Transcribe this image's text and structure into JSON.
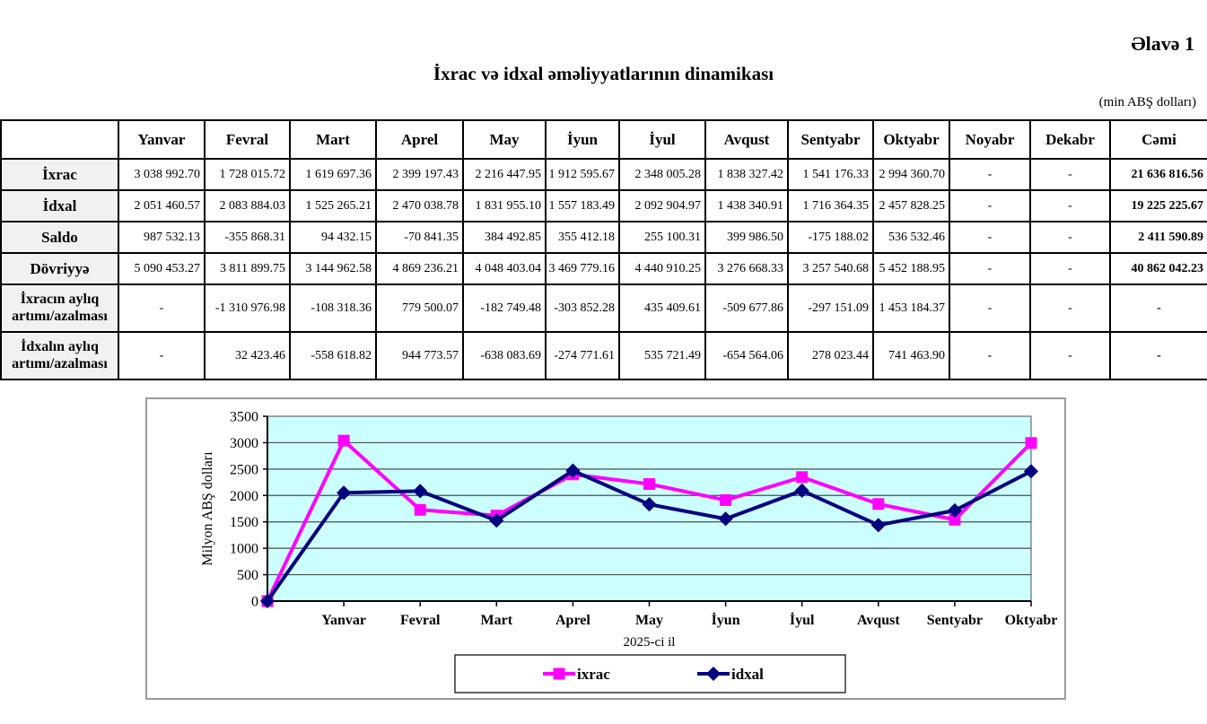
{
  "page": {
    "annex_label": "Əlavə 1",
    "title": "İxrac və idxal əməliyyatlarının dinamikası",
    "unit_note": "(min ABŞ dolları)"
  },
  "table": {
    "header": [
      "",
      "Yanvar",
      "Fevral",
      "Mart",
      "Aprel",
      "May",
      "İyun",
      "İyul",
      "Avqust",
      "Sentyabr",
      "Oktyabr",
      "Noyabr",
      "Dekabr",
      "Cəmi"
    ],
    "rows": [
      {
        "label": "İxrac",
        "tall": false,
        "cells": [
          "3 038 992.70",
          "1 728 015.72",
          "1 619 697.36",
          "2 399 197.43",
          "2 216 447.95",
          "1 912 595.67",
          "2 348 005.28",
          "1 838 327.42",
          "1 541 176.33",
          "2 994 360.70",
          "-",
          "-",
          "21 636 816.56"
        ]
      },
      {
        "label": "İdxal",
        "tall": false,
        "cells": [
          "2 051 460.57",
          "2 083 884.03",
          "1 525 265.21",
          "2 470 038.78",
          "1 831 955.10",
          "1 557 183.49",
          "2 092 904.97",
          "1 438 340.91",
          "1 716 364.35",
          "2 457 828.25",
          "-",
          "-",
          "19 225 225.67"
        ]
      },
      {
        "label": "Saldo",
        "tall": false,
        "cells": [
          "987 532.13",
          "-355 868.31",
          "94 432.15",
          "-70 841.35",
          "384 492.85",
          "355 412.18",
          "255 100.31",
          "399 986.50",
          "-175 188.02",
          "536 532.46",
          "-",
          "-",
          "2 411 590.89"
        ]
      },
      {
        "label": "Dövriyyə",
        "tall": false,
        "cells": [
          "5 090 453.27",
          "3 811 899.75",
          "3 144 962.58",
          "4 869 236.21",
          "4 048 403.04",
          "3 469 779.16",
          "4 440 910.25",
          "3 276 668.33",
          "3 257 540.68",
          "5 452 188.95",
          "-",
          "-",
          "40 862 042.23"
        ]
      },
      {
        "label": "İxracın aylıq\nartımı/azalması",
        "tall": true,
        "cells": [
          "-",
          "-1 310 976.98",
          "-108 318.36",
          "779 500.07",
          "-182 749.48",
          "-303 852.28",
          "435 409.61",
          "-509 677.86",
          "-297 151.09",
          "1 453 184.37",
          "-",
          "-",
          "-"
        ]
      },
      {
        "label": "İdxalın aylıq\nartımı/azalması",
        "tall": true,
        "cells": [
          "-",
          "32 423.46",
          "-558 618.82",
          "944 773.57",
          "-638 083.69",
          "-274 771.61",
          "535 721.49",
          "-654 564.06",
          "278 023.44",
          "741 463.90",
          "-",
          "-",
          "-"
        ]
      }
    ]
  },
  "chart_data": {
    "type": "line",
    "title": "",
    "ylabel": "Milyon ABŞ dolları",
    "xlabel": "2025-ci il",
    "ylim": [
      0,
      3500
    ],
    "ytick_step": 500,
    "grid": true,
    "plot_bg": "#CCFFFF",
    "gridline_color": "#4d4d4d",
    "legend_position": "bottom",
    "categories": [
      "",
      "Yanvar",
      "Fevral",
      "Mart",
      "Aprel",
      "May",
      "İyun",
      "İyul",
      "Avqust",
      "Sentyabr",
      "Oktyabr"
    ],
    "series": [
      {
        "name": "ixrac",
        "color": "#FF00FF",
        "marker": "square",
        "values": [
          0,
          3038.99,
          1728.02,
          1619.7,
          2399.2,
          2216.45,
          1912.6,
          2348.01,
          1838.33,
          1541.18,
          2994.36
        ]
      },
      {
        "name": "idxal",
        "color": "#000080",
        "marker": "diamond",
        "values": [
          0,
          2051.46,
          2083.88,
          1525.27,
          2470.04,
          1831.96,
          1557.18,
          2092.9,
          1438.34,
          1716.36,
          2457.83
        ]
      }
    ]
  }
}
